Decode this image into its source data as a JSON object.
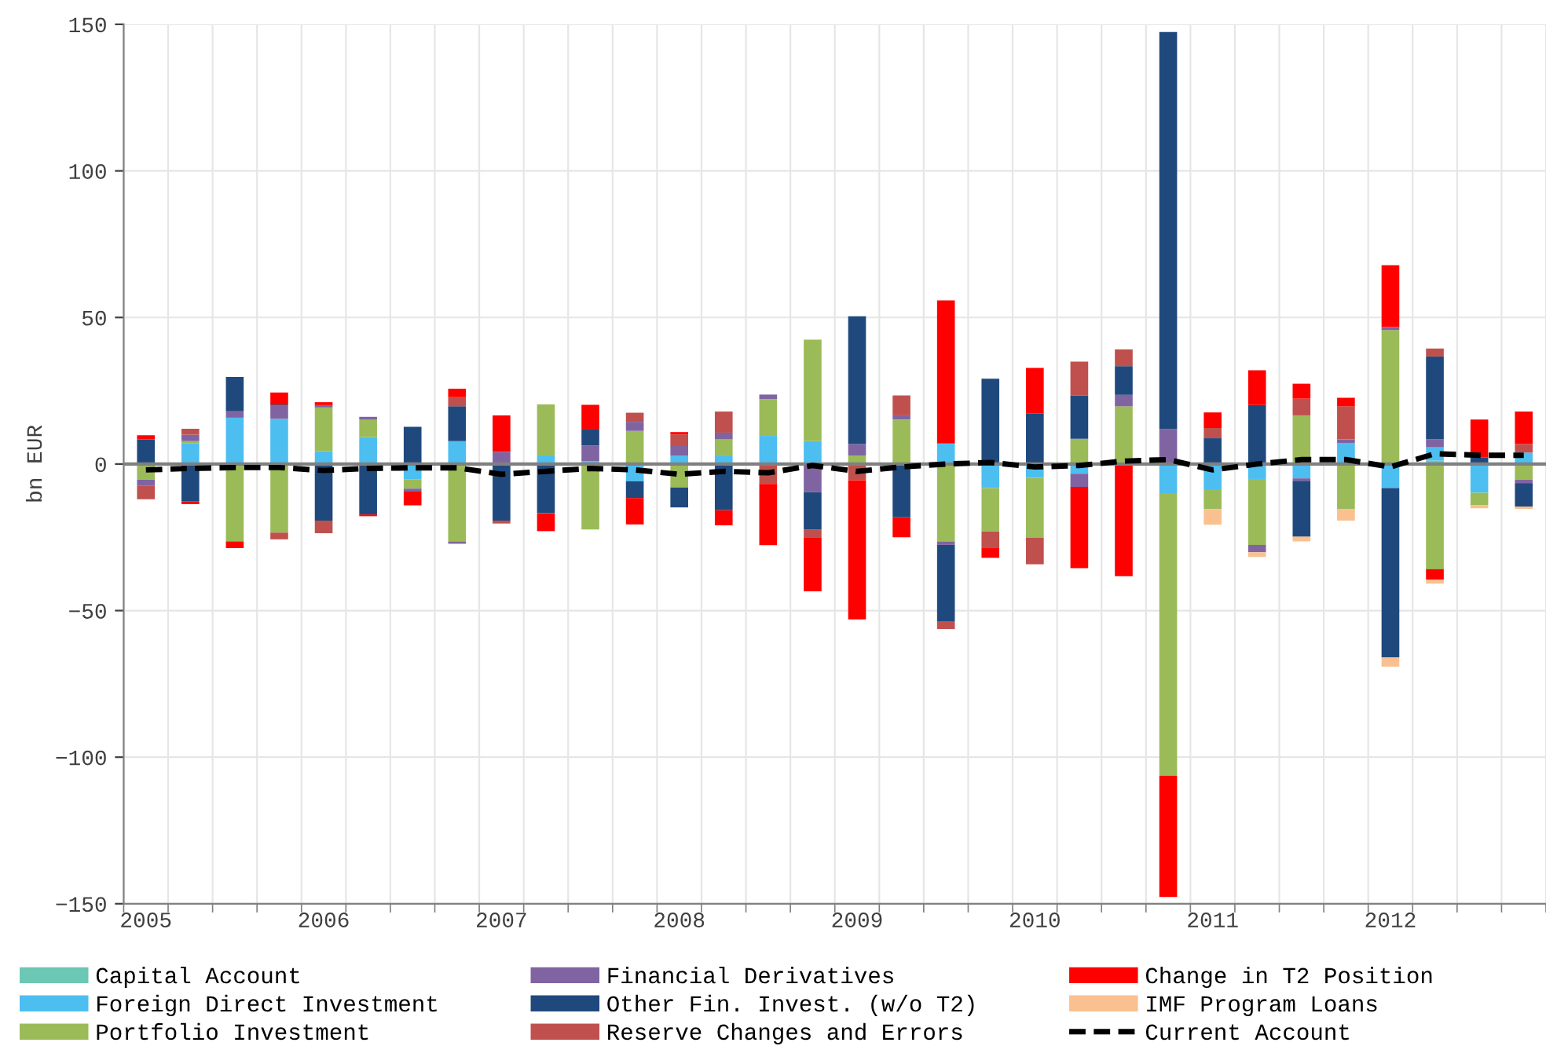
{
  "chart_data": {
    "type": "bar",
    "stacked": true,
    "ylabel": "bn EUR",
    "categories": [
      "2005",
      null,
      null,
      null,
      "2006",
      null,
      null,
      null,
      "2007",
      null,
      null,
      null,
      "2008",
      null,
      null,
      null,
      "2009",
      null,
      null,
      null,
      "2010",
      null,
      null,
      null,
      "2011",
      null,
      null,
      null,
      "2012",
      null,
      null,
      null
    ],
    "ylim": [
      -150,
      150
    ],
    "yticks": [
      -150,
      -100,
      -50,
      0,
      50,
      100,
      150
    ],
    "grid": true,
    "legend": "bottom",
    "ref_lines": [
      {
        "axis": "y",
        "value": 0,
        "color": "#808080"
      }
    ],
    "series": [
      {
        "name": "Capital Account",
        "color": "#6cc7b4",
        "values": [
          null,
          null,
          null,
          null,
          null,
          null,
          null,
          null,
          null,
          null,
          null,
          null,
          null,
          null,
          null,
          null,
          null,
          null,
          null,
          null,
          null,
          null,
          null,
          null,
          null,
          null,
          null,
          null,
          null,
          1.2,
          null,
          null
        ]
      },
      {
        "name": "Foreign Direct Investment",
        "color": "#4dbef0",
        "values": [
          null,
          7,
          15.8,
          15.4,
          4.3,
          9.2,
          -5.3,
          7.8,
          null,
          2.9,
          1,
          -5.9,
          2.9,
          2.9,
          9.6,
          7.8,
          null,
          null,
          7,
          -8.2,
          -4.7,
          -3.3,
          null,
          -10.2,
          -8.6,
          -5.1,
          -4.9,
          7.2,
          -8.2,
          4.5,
          -9.8,
          3.9
        ]
      },
      {
        "name": "Portfolio Investment",
        "color": "#9bbb59",
        "values": [
          -5.3,
          0.8,
          -26.4,
          -23.4,
          15,
          5.9,
          -3.1,
          -26.4,
          null,
          17.4,
          -22.3,
          11.3,
          -8,
          5.5,
          12.5,
          34.6,
          2.9,
          15.2,
          -26.4,
          -14.8,
          -20.5,
          8.6,
          19.7,
          -96.1,
          -6.8,
          -22.5,
          16.6,
          -15.4,
          45.7,
          -35.9,
          -4.3,
          -5.3
        ]
      },
      {
        "name": "Financial Derivatives",
        "color": "#8064a2",
        "values": [
          -2,
          2.2,
          2.2,
          4.5,
          0.8,
          1,
          -1,
          -0.8,
          4.1,
          null,
          5.3,
          3.1,
          3.5,
          2.3,
          1.6,
          -9.6,
          3.9,
          1.4,
          -1.2,
          null,
          null,
          -4.5,
          3.9,
          11.9,
          null,
          -2.5,
          -0.8,
          1.2,
          1,
          2.7,
          null,
          -1.2
        ]
      },
      {
        "name": "Other Fin. Invest. (w/o T2)",
        "color": "#1f497d",
        "values": [
          8.4,
          -12.7,
          11.7,
          0.4,
          -19.3,
          -17.2,
          12.7,
          11.9,
          -19.3,
          -16.8,
          5.7,
          -5.7,
          -6.8,
          -15.8,
          null,
          -12.7,
          43.6,
          -18.2,
          -26,
          29.1,
          17.2,
          14.8,
          9.8,
          135.5,
          8.8,
          20.1,
          -19.1,
          null,
          -57.8,
          28.3,
          2.3,
          -8
        ]
      },
      {
        "name": "Reserve Changes and Errors",
        "color": "#c0504d",
        "values": [
          -4.7,
          2,
          null,
          -2.3,
          -4.3,
          null,
          null,
          3.1,
          -1,
          null,
          null,
          3.1,
          3.7,
          7.2,
          -6.8,
          -2.7,
          -5.5,
          6.8,
          -2.7,
          -5.7,
          -9,
          11.5,
          5.7,
          null,
          3.5,
          null,
          5.7,
          11.3,
          null,
          2.7,
          null,
          2.9
        ]
      },
      {
        "name": "Change in T2 Position",
        "color": "#ff0000",
        "values": [
          1.4,
          -1,
          -2.3,
          4.1,
          1,
          -0.6,
          -4.7,
          2.9,
          12.5,
          -6.1,
          8.2,
          -9,
          0.8,
          -5.1,
          -20.9,
          -18.4,
          -47.5,
          -6.8,
          48.8,
          -3.3,
          15.6,
          -27.7,
          -38.3,
          -41.4,
          5.3,
          11.9,
          5.1,
          2.9,
          21.1,
          -3.5,
          12.9,
          11.1
        ]
      },
      {
        "name": "IMF Program Loans",
        "color": "#fac090",
        "values": [
          null,
          null,
          null,
          null,
          null,
          null,
          null,
          null,
          null,
          null,
          null,
          null,
          null,
          null,
          null,
          null,
          null,
          null,
          null,
          null,
          null,
          null,
          null,
          null,
          -5.3,
          -1.6,
          -1.6,
          -3.9,
          -3.1,
          -1.4,
          -1,
          -0.8
        ]
      },
      {
        "name": "Current Account",
        "type": "line",
        "color": "#000000",
        "line_style": "dashed",
        "values": [
          -2,
          -1.5,
          -1.2,
          -1.2,
          -2.2,
          -1.5,
          -1.3,
          -1.3,
          -3.5,
          -2.5,
          -1.5,
          -2,
          -3.5,
          -2.5,
          -3,
          -0.5,
          -2.5,
          -1,
          0,
          0.5,
          -1,
          -0.5,
          1,
          1.5,
          -2,
          0,
          1.5,
          1.5,
          -1,
          3.5,
          3,
          3
        ]
      }
    ]
  }
}
